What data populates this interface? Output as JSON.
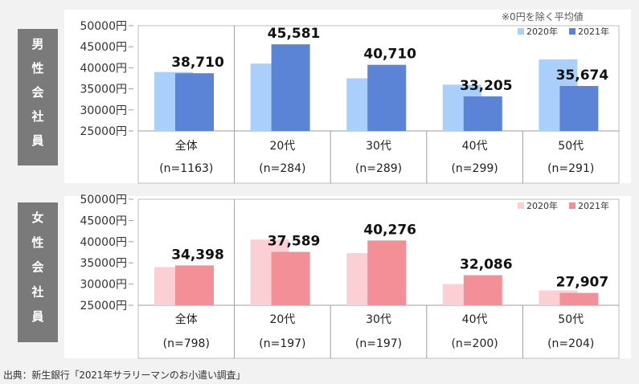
{
  "note": "※0円を除く平均値",
  "source": "出典：新生銀行「2021年サラリーマンのお小遣い調査」",
  "chart_data": [
    {
      "type": "bar",
      "group_label": "男性会社員",
      "categories": [
        "全体",
        "20代",
        "30代",
        "40代",
        "50代"
      ],
      "sample_sizes": [
        "(n=1163)",
        "(n=284)",
        "(n=289)",
        "(n=299)",
        "(n=291)"
      ],
      "series": [
        {
          "name": "2020年",
          "values": [
            39000,
            41000,
            37500,
            36000,
            42000
          ],
          "color": "#a9cffa"
        },
        {
          "name": "2021年",
          "values": [
            38710,
            45581,
            40710,
            33205,
            35674
          ],
          "color": "#5b84d6"
        }
      ],
      "data_labels": [
        "38,710",
        "45,581",
        "40,710",
        "33,205",
        "35,674"
      ],
      "ylim": [
        25000,
        50000
      ],
      "yticks": [
        "50000円",
        "45000円",
        "40000円",
        "35000円",
        "30000円",
        "25000円"
      ],
      "tick_values": [
        50000,
        45000,
        40000,
        35000,
        30000,
        25000
      ],
      "legend_position": "top-right"
    },
    {
      "type": "bar",
      "group_label": "女性会社員",
      "categories": [
        "全体",
        "20代",
        "30代",
        "40代",
        "50代"
      ],
      "sample_sizes": [
        "(n=798)",
        "(n=197)",
        "(n=197)",
        "(n=200)",
        "(n=204)"
      ],
      "series": [
        {
          "name": "2020年",
          "values": [
            34000,
            40500,
            37300,
            30000,
            28500
          ],
          "color": "#fbd0d4"
        },
        {
          "name": "2021年",
          "values": [
            34398,
            37589,
            40276,
            32086,
            27907
          ],
          "color": "#f38f97"
        }
      ],
      "data_labels": [
        "34,398",
        "37,589",
        "40,276",
        "32,086",
        "27,907"
      ],
      "ylim": [
        25000,
        50000
      ],
      "yticks": [
        "50000円",
        "45000円",
        "40000円",
        "35000円",
        "30000円",
        "25000円"
      ],
      "tick_values": [
        50000,
        45000,
        40000,
        35000,
        30000,
        25000
      ],
      "legend_position": "top-right"
    }
  ]
}
